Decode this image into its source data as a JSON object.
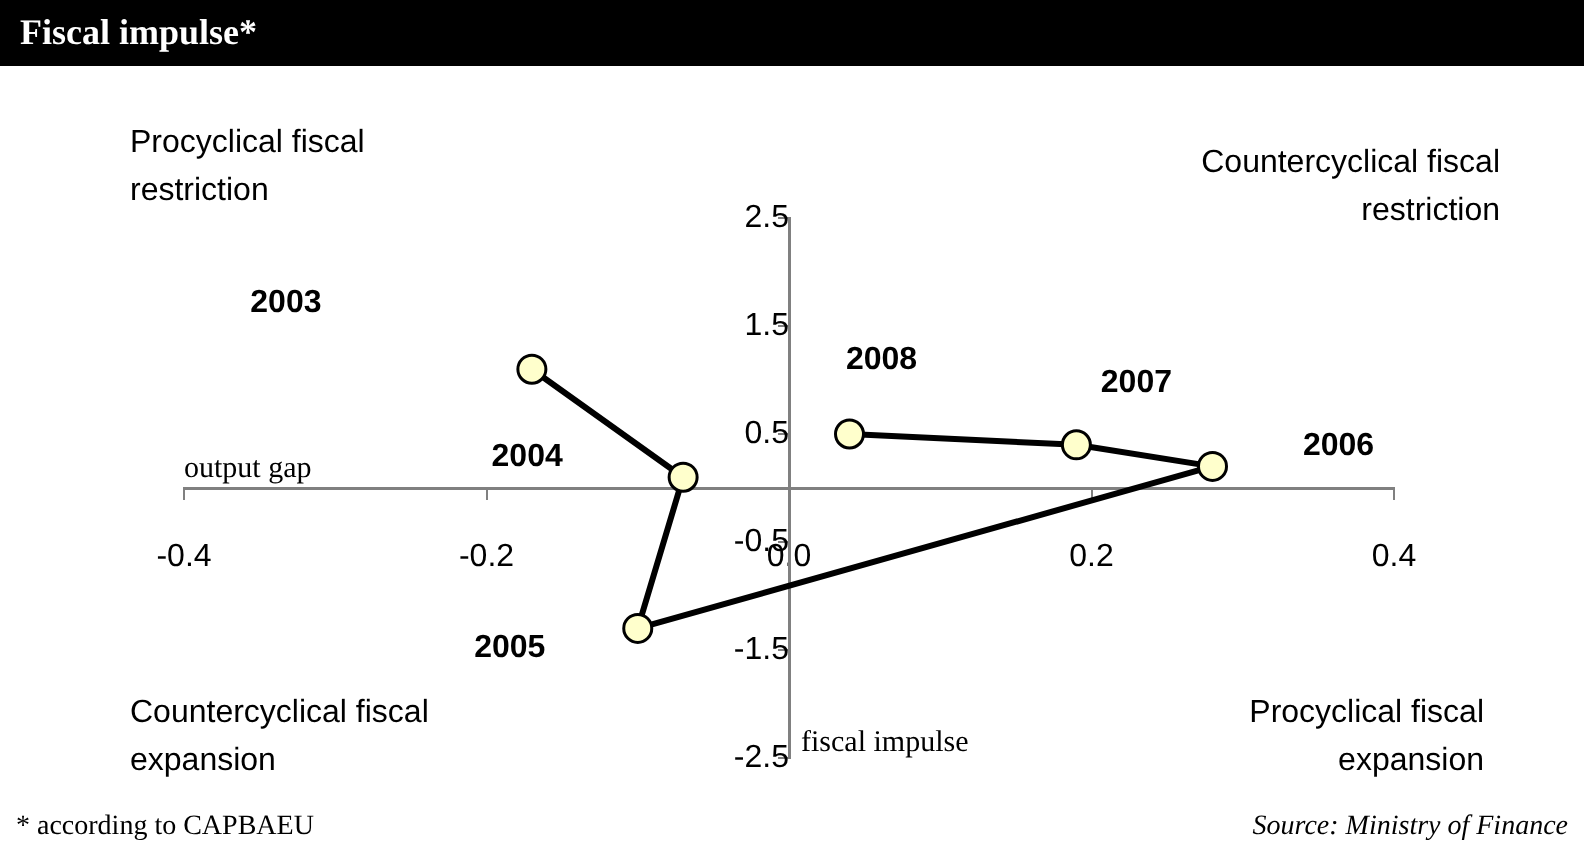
{
  "chart_data": {
    "type": "line",
    "title": "Fiscal impulse*",
    "xlabel": "output gap",
    "ylabel": "fiscal impulse",
    "x": [
      -0.17,
      -0.07,
      -0.1,
      0.28,
      0.19,
      0.04
    ],
    "values": [
      1.1,
      0.1,
      -1.3,
      0.2,
      0.4,
      0.5
    ],
    "color": "#000000",
    "marker": "circle",
    "xlim": [
      -0.4,
      0.4
    ],
    "xticks": [
      -0.4,
      -0.2,
      {
        "value": 0,
        "label": "0.0"
      },
      0.2,
      0.4
    ],
    "ylim": [
      -2.5,
      2.5
    ],
    "yticks": [
      -2.5,
      -1.5,
      -0.5,
      0.5,
      1.5,
      2.5
    ],
    "grid": false,
    "legend": false,
    "annotations": [
      "Procyclical fiscal restriction",
      "Countercyclical fiscal restriction",
      "Countercyclical fiscal expansion",
      "Procyclical fiscal expansion",
      "2003",
      "2004",
      "2005",
      "2006",
      "2007",
      "2008",
      "* according to CAPBAEU",
      "Source: Ministry of Finance"
    ]
  }
}
